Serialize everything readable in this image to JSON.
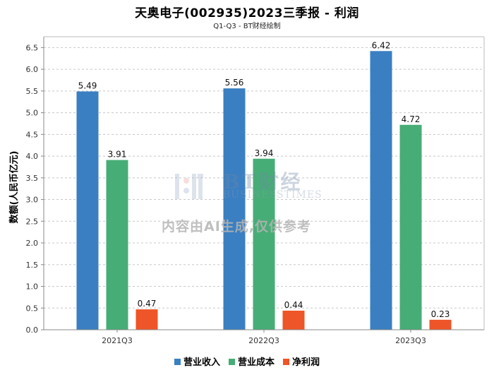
{
  "chart_data": {
    "type": "bar",
    "title": "天奥电子(002935)2023三季报 - 利润",
    "subtitle": "Q1-Q3 - BT财经绘制",
    "xlabel": "",
    "ylabel": "数额(人民币亿元)",
    "categories": [
      "2021Q3",
      "2022Q3",
      "2023Q3"
    ],
    "series": [
      {
        "name": "营业收入",
        "color": "#3a7fc1",
        "values": [
          5.49,
          5.56,
          6.42
        ]
      },
      {
        "name": "营业成本",
        "color": "#47ad76",
        "values": [
          3.91,
          3.94,
          4.72
        ]
      },
      {
        "name": "净利润",
        "color": "#ee5528",
        "values": [
          0.47,
          0.44,
          0.23
        ]
      }
    ],
    "ylim": [
      0,
      6.75
    ],
    "yticks": [
      "0.0",
      "0.5",
      "1.0",
      "1.5",
      "2.0",
      "2.5",
      "3.0",
      "3.5",
      "4.0",
      "4.5",
      "5.0",
      "5.5",
      "6.0",
      "6.5"
    ],
    "grid": true,
    "legend_position": "bottom"
  },
  "watermark": {
    "brand": "BT财经",
    "brand_sub": "BUSINESSTIMES",
    "note": "内容由AI生成,仅供参考"
  }
}
